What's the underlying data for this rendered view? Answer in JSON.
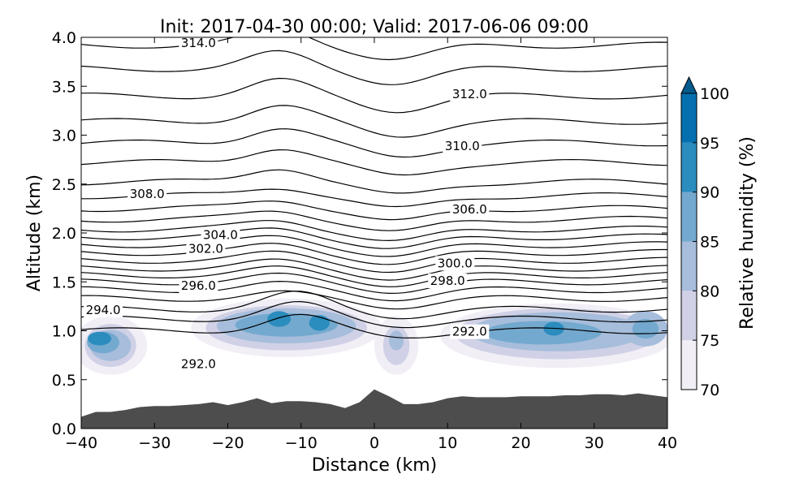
{
  "chart_data": {
    "type": "contourf",
    "title": "Init: 2017-04-30 00:00; Valid: 2017-06-06 09:00",
    "xlabel": "Distance (km)",
    "ylabel": "Altitude (km)",
    "xlim": [
      -40,
      40
    ],
    "ylim": [
      0.0,
      4.0
    ],
    "x_ticks": [
      -40,
      -30,
      -20,
      -10,
      0,
      10,
      20,
      30,
      40
    ],
    "x_tick_labels": [
      "−40",
      "−30",
      "−20",
      "−10",
      "0",
      "10",
      "20",
      "30",
      "40"
    ],
    "y_ticks": [
      0.0,
      0.5,
      1.0,
      1.5,
      2.0,
      2.5,
      3.0,
      3.5,
      4.0
    ],
    "y_tick_labels": [
      "0.0",
      "0.5",
      "1.0",
      "1.5",
      "2.0",
      "2.5",
      "3.0",
      "3.5",
      "4.0"
    ],
    "colorbar": {
      "label": "Relative humidity (%)",
      "levels": [
        70,
        75,
        80,
        85,
        90,
        95,
        100
      ],
      "tick_labels": [
        "70",
        "75",
        "80",
        "85",
        "90",
        "95",
        "100"
      ],
      "colors": [
        "#f1eef6",
        "#d0d1e6",
        "#a6bddb",
        "#74a9cf",
        "#2b8cbe",
        "#0570b0",
        "#045a8d"
      ],
      "extend": "max"
    },
    "terrain": {
      "color": "#4d4d4d",
      "x": [
        -40,
        -38,
        -36,
        -34,
        -32,
        -30,
        -28,
        -26,
        -24,
        -22,
        -20,
        -18,
        -16,
        -14,
        -12,
        -10,
        -8,
        -6,
        -4,
        -2,
        0,
        2,
        4,
        6,
        8,
        10,
        12,
        14,
        16,
        18,
        20,
        22,
        24,
        26,
        28,
        30,
        32,
        34,
        36,
        38,
        40
      ],
      "height": [
        0.12,
        0.17,
        0.17,
        0.19,
        0.22,
        0.23,
        0.23,
        0.24,
        0.25,
        0.27,
        0.24,
        0.27,
        0.31,
        0.26,
        0.28,
        0.28,
        0.27,
        0.25,
        0.21,
        0.27,
        0.4,
        0.33,
        0.25,
        0.25,
        0.27,
        0.31,
        0.33,
        0.32,
        0.32,
        0.32,
        0.33,
        0.33,
        0.33,
        0.34,
        0.34,
        0.35,
        0.35,
        0.34,
        0.36,
        0.34,
        0.32
      ]
    },
    "humidity_regions": [
      {
        "level": 70,
        "cx": -36,
        "cy": 0.85,
        "rx": 5,
        "ry": 0.3
      },
      {
        "level": 75,
        "cx": -36,
        "cy": 0.85,
        "rx": 3.5,
        "ry": 0.22
      },
      {
        "level": 80,
        "cx": -36,
        "cy": 0.85,
        "rx": 2.8,
        "ry": 0.16
      },
      {
        "level": 85,
        "cx": -37,
        "cy": 0.88,
        "rx": 2.2,
        "ry": 0.11
      },
      {
        "level": 90,
        "cx": -37.5,
        "cy": 0.92,
        "rx": 1.6,
        "ry": 0.07
      },
      {
        "level": 70,
        "cx": -12,
        "cy": 1.03,
        "rx": 13,
        "ry": 0.3
      },
      {
        "level": 75,
        "cx": -12,
        "cy": 1.03,
        "rx": 11,
        "ry": 0.23
      },
      {
        "level": 80,
        "cx": -12,
        "cy": 1.05,
        "rx": 9.5,
        "ry": 0.18
      },
      {
        "level": 85,
        "cx": -12,
        "cy": 1.06,
        "rx": 7,
        "ry": 0.12
      },
      {
        "level": 90,
        "cx": -13,
        "cy": 1.12,
        "rx": 1.6,
        "ry": 0.08
      },
      {
        "level": 90,
        "cx": -7.5,
        "cy": 1.08,
        "rx": 1.4,
        "ry": 0.08
      },
      {
        "level": 70,
        "cx": 3,
        "cy": 0.85,
        "rx": 3,
        "ry": 0.3
      },
      {
        "level": 75,
        "cx": 3,
        "cy": 0.85,
        "rx": 1.8,
        "ry": 0.2
      },
      {
        "level": 80,
        "cx": 3,
        "cy": 0.9,
        "rx": 1,
        "ry": 0.1
      },
      {
        "level": 70,
        "cx": 25,
        "cy": 0.95,
        "rx": 16,
        "ry": 0.33
      },
      {
        "level": 75,
        "cx": 25,
        "cy": 0.97,
        "rx": 14,
        "ry": 0.26
      },
      {
        "level": 80,
        "cx": 25,
        "cy": 0.99,
        "rx": 12,
        "ry": 0.2
      },
      {
        "level": 85,
        "cx": 23,
        "cy": 0.98,
        "rx": 8,
        "ry": 0.12
      },
      {
        "level": 90,
        "cx": 24.5,
        "cy": 1.02,
        "rx": 1.4,
        "ry": 0.07
      },
      {
        "level": 80,
        "cx": 37,
        "cy": 1.02,
        "rx": 3,
        "ry": 0.18
      },
      {
        "level": 85,
        "cx": 37,
        "cy": 1.02,
        "rx": 1.8,
        "ry": 0.1
      }
    ],
    "isentropes": {
      "color": "#000000",
      "levels": [
        {
          "theta": 292.0,
          "base": 1.0
        },
        {
          "theta": 293.0,
          "base": 1.12
        },
        {
          "theta": 294.0,
          "base": 1.22
        },
        {
          "theta": 295.0,
          "base": 1.33
        },
        {
          "theta": 296.0,
          "base": 1.42
        },
        {
          "theta": 297.0,
          "base": 1.5
        },
        {
          "theta": 298.0,
          "base": 1.57
        },
        {
          "theta": 299.0,
          "base": 1.64
        },
        {
          "theta": 300.0,
          "base": 1.72
        },
        {
          "theta": 301.0,
          "base": 1.8
        },
        {
          "theta": 302.0,
          "base": 1.88
        },
        {
          "theta": 303.0,
          "base": 1.96
        },
        {
          "theta": 304.0,
          "base": 2.04
        },
        {
          "theta": 305.0,
          "base": 2.14
        },
        {
          "theta": 306.0,
          "base": 2.25
        },
        {
          "theta": 307.0,
          "base": 2.38
        },
        {
          "theta": 308.0,
          "base": 2.52
        },
        {
          "theta": 309.0,
          "base": 2.72
        },
        {
          "theta": 310.0,
          "base": 2.92
        },
        {
          "theta": 311.0,
          "base": 3.14
        },
        {
          "theta": 312.0,
          "base": 3.4
        },
        {
          "theta": 313.0,
          "base": 3.68
        },
        {
          "theta": 314.0,
          "base": 3.92
        }
      ],
      "labels": [
        {
          "text": "314.0",
          "x": -24,
          "y": 3.94
        },
        {
          "text": "312.0",
          "x": 13,
          "y": 3.42
        },
        {
          "text": "310.0",
          "x": 12,
          "y": 2.89
        },
        {
          "text": "308.0",
          "x": -31,
          "y": 2.4
        },
        {
          "text": "306.0",
          "x": 13,
          "y": 2.24
        },
        {
          "text": "304.0",
          "x": -21,
          "y": 1.98
        },
        {
          "text": "302.0",
          "x": -23,
          "y": 1.84
        },
        {
          "text": "300.0",
          "x": 11,
          "y": 1.69
        },
        {
          "text": "298.0",
          "x": 10,
          "y": 1.51
        },
        {
          "text": "296.0",
          "x": -24,
          "y": 1.46
        },
        {
          "text": "294.0",
          "x": -37,
          "y": 1.21
        },
        {
          "text": "292.0",
          "x": 13,
          "y": 0.99
        },
        {
          "text": "292.0",
          "x": -24,
          "y": 0.66
        }
      ]
    }
  }
}
